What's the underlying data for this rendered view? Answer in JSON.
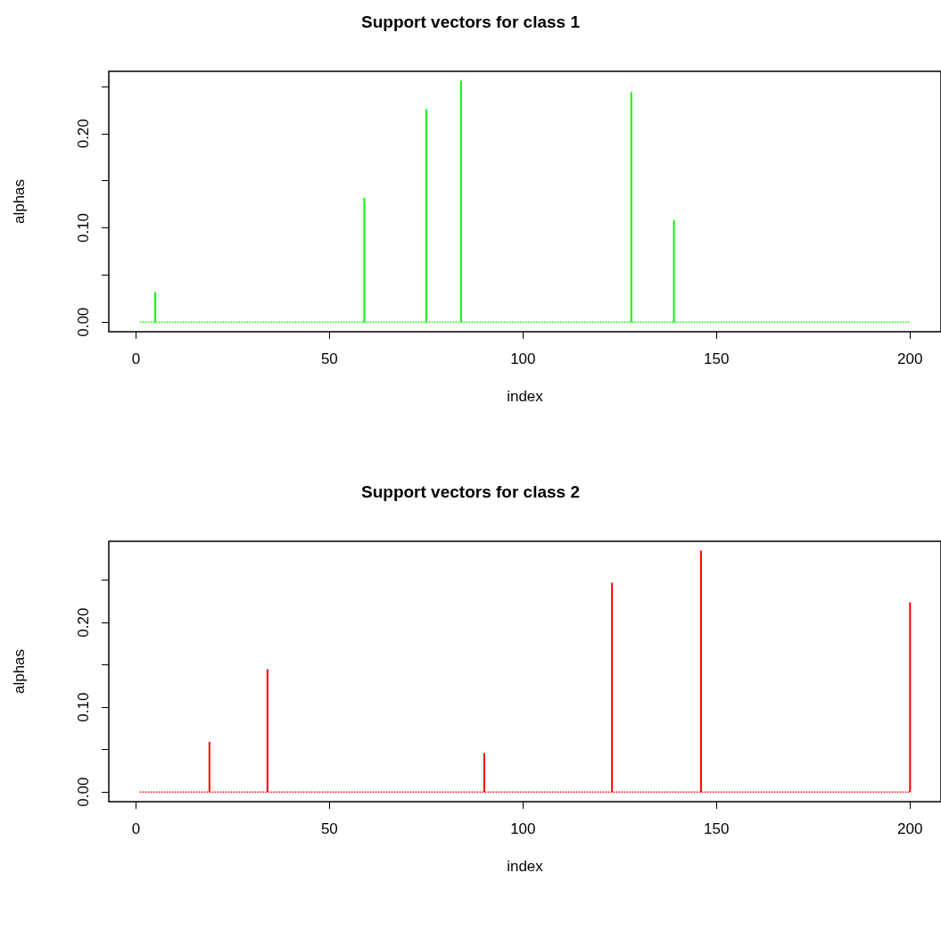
{
  "chart_data": [
    {
      "type": "bar",
      "title": "Support vectors for class 1",
      "xlabel": "index",
      "ylabel": "alphas",
      "xlim": [
        -7,
        208
      ],
      "xticks": [
        0,
        50,
        100,
        150,
        200
      ],
      "ylim": [
        -0.0102,
        0.266
      ],
      "yticks": [
        {
          "value": 0,
          "label": "0.00"
        },
        {
          "value": 0.05,
          "label": null
        },
        {
          "value": 0.1,
          "label": "0.10"
        },
        {
          "value": 0.15,
          "label": null
        },
        {
          "value": 0.2,
          "label": "0.20"
        },
        {
          "value": 0.25,
          "label": null
        }
      ],
      "series": [
        {
          "color": "#00ff00",
          "x": [
            5,
            59,
            75,
            84,
            128,
            139
          ],
          "values": [
            0.032,
            0.132,
            0.226,
            0.256,
            0.244,
            0.108
          ]
        },
        {
          "type": "line",
          "color": "#00ff00",
          "x": [
            1,
            200
          ],
          "values": [
            0,
            0
          ],
          "line_style": "dotted",
          "marker": "none"
        }
      ]
    },
    {
      "type": "bar",
      "title": "Support vectors for class 2",
      "xlabel": "index",
      "ylabel": "alphas",
      "xlim": [
        -7,
        208
      ],
      "xticks": [
        0,
        50,
        100,
        150,
        200
      ],
      "ylim": [
        -0.0114,
        0.296
      ],
      "yticks": [
        {
          "value": 0,
          "label": "0.00"
        },
        {
          "value": 0.05,
          "label": null
        },
        {
          "value": 0.1,
          "label": "0.10"
        },
        {
          "value": 0.15,
          "label": null
        },
        {
          "value": 0.2,
          "label": "0.20"
        },
        {
          "value": 0.25,
          "label": null
        }
      ],
      "series": [
        {
          "color": "#ff0000",
          "x": [
            19,
            34,
            90,
            123,
            146,
            200
          ],
          "values": [
            0.059,
            0.145,
            0.046,
            0.247,
            0.285,
            0.224
          ]
        },
        {
          "type": "line",
          "color": "#ff0000",
          "x": [
            1,
            200
          ],
          "values": [
            0,
            0
          ],
          "line_style": "dotted",
          "marker": "none"
        }
      ]
    }
  ]
}
